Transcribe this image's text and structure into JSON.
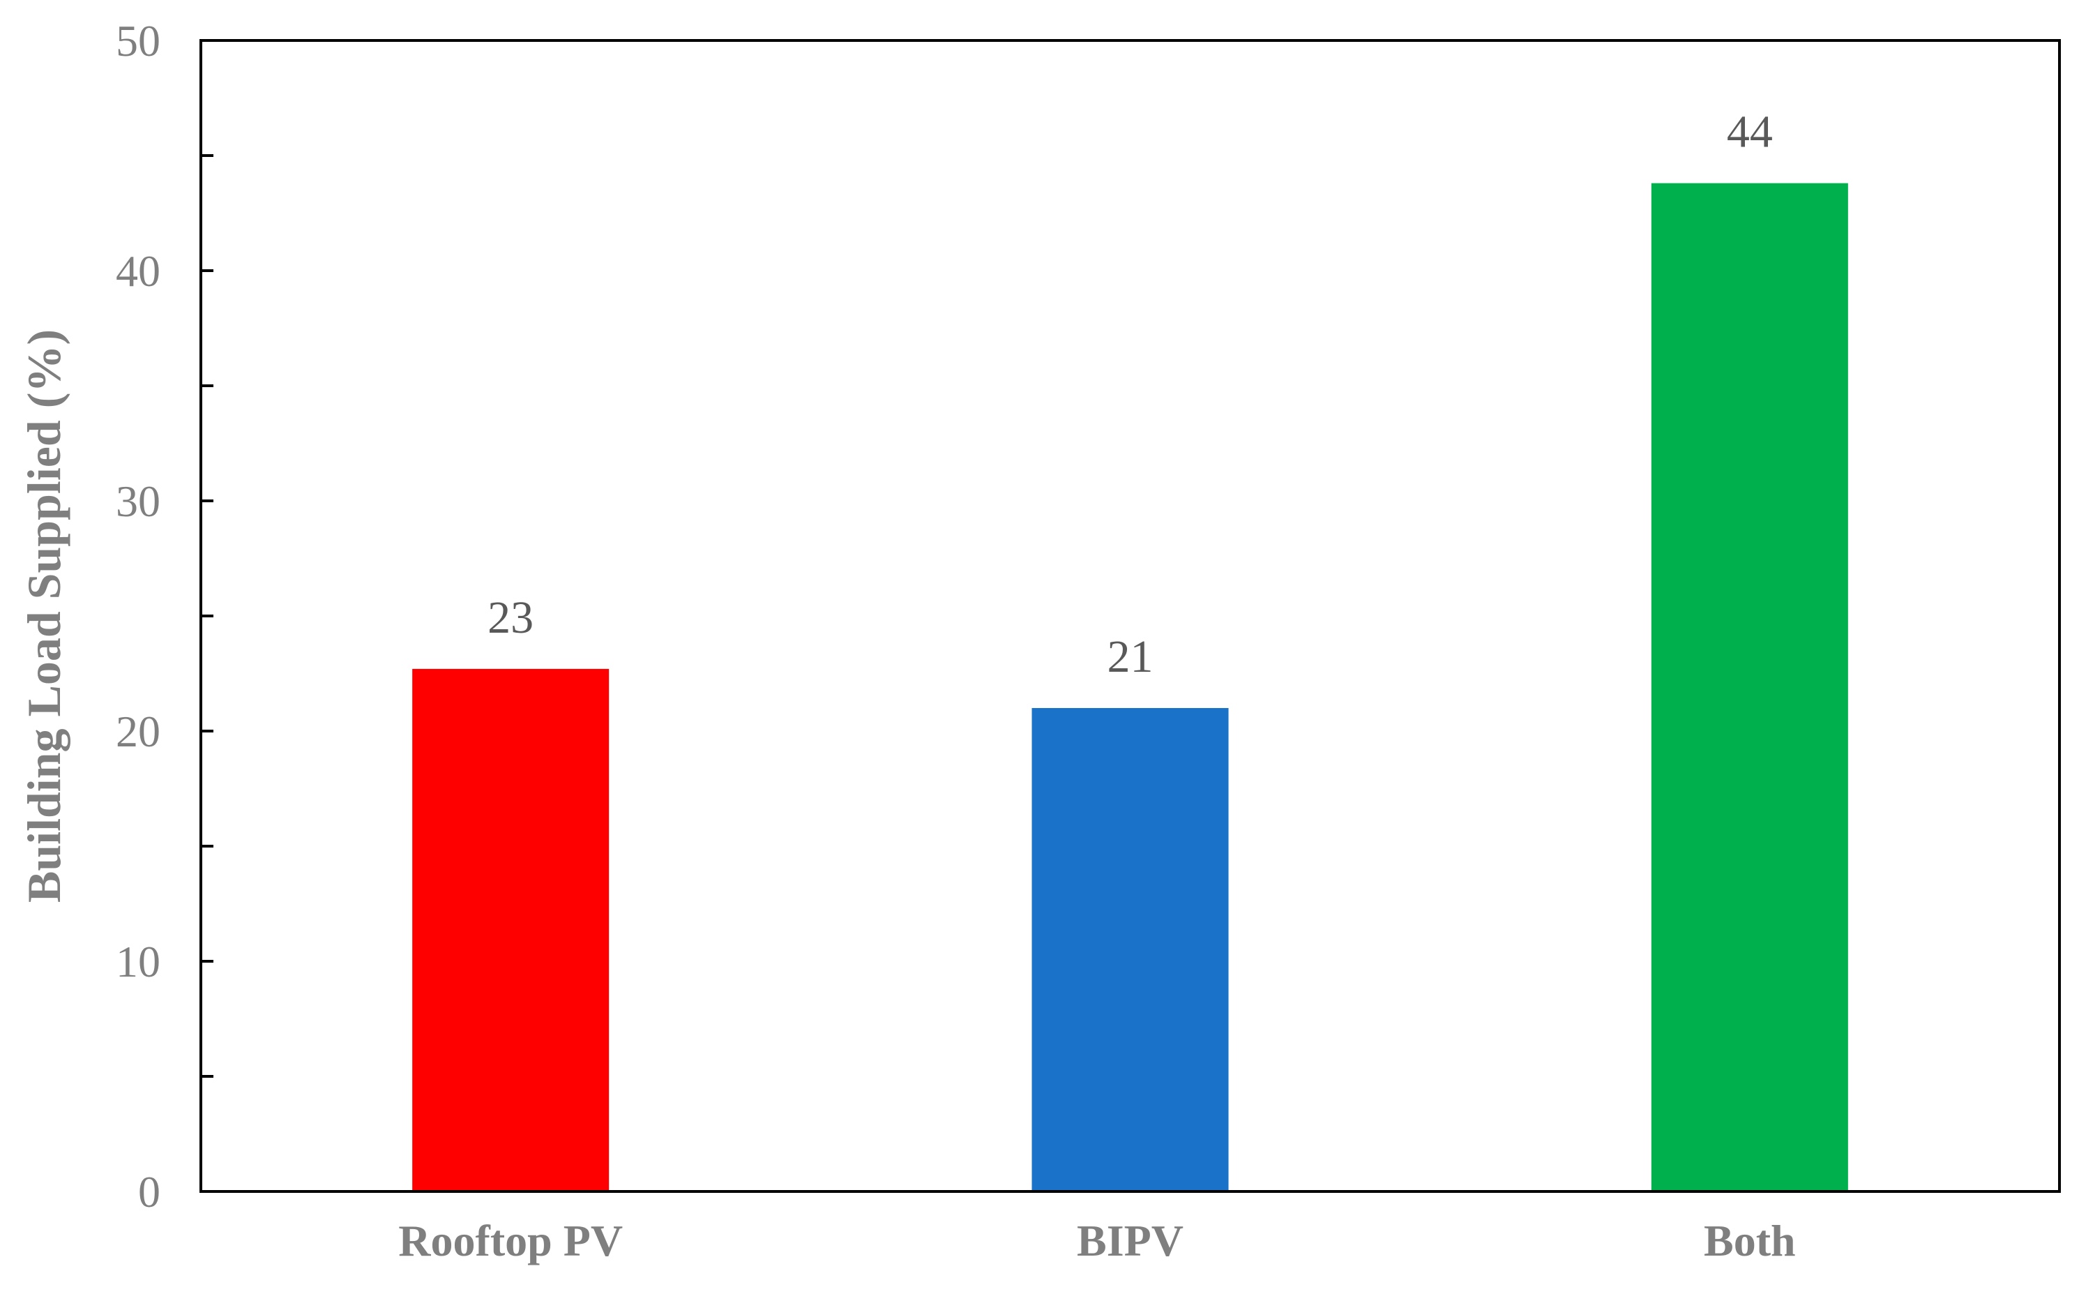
{
  "chart_data": {
    "type": "bar",
    "title": "",
    "xlabel": "",
    "ylabel": "Building Load Supplied (%)",
    "ylim": [
      0,
      50
    ],
    "yticks": [
      0,
      10,
      20,
      30,
      40,
      50
    ],
    "categories": [
      "Rooftop PV",
      "BIPV",
      "Both"
    ],
    "values": [
      22.7,
      21.0,
      43.8
    ],
    "data_labels": [
      "23",
      "21",
      "44"
    ],
    "colors": [
      "#ff0000",
      "#1a73c8",
      "#00b04c"
    ],
    "grid": false,
    "legend": "none"
  }
}
